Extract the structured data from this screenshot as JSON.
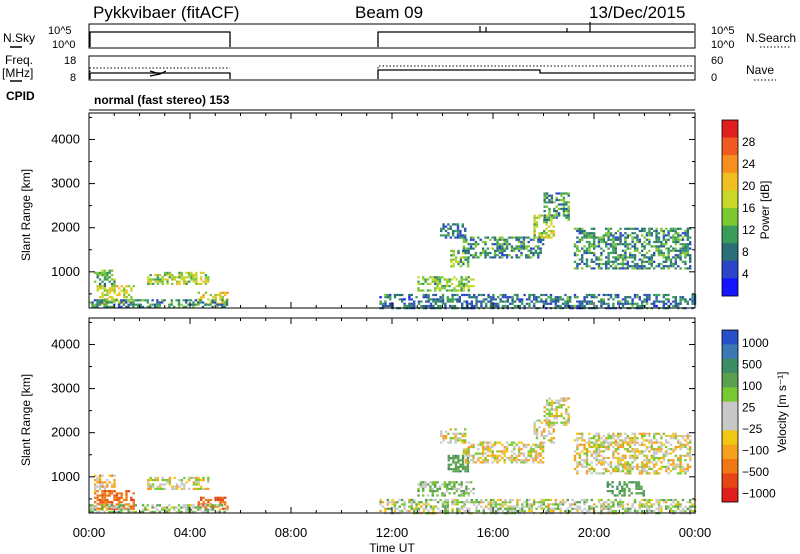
{
  "header": {
    "radar": "Pykkvibaer (fitACF)",
    "beam": "Beam 09",
    "date": "13/Dec/2015"
  },
  "top_panel": {
    "left_label": "N.Sky",
    "right_label": "N.Search",
    "left_ticks": [
      "10^5",
      "10^0"
    ],
    "right_ticks": [
      "10^5",
      "10^0"
    ]
  },
  "freq_panel": {
    "left_label_1": "Freq.",
    "left_label_2": "[MHz]",
    "right_label": "Nave",
    "left_ticks": [
      "18",
      "8"
    ],
    "right_ticks": [
      "60",
      "0"
    ]
  },
  "cpid": {
    "label": "CPID",
    "text": "normal (fast stereo) 153"
  },
  "xaxis": {
    "ticks": [
      "00:00",
      "04:00",
      "08:00",
      "12:00",
      "16:00",
      "20:00",
      "00:00"
    ],
    "label": "Time UT"
  },
  "chart_data": [
    {
      "type": "heatmap",
      "title": "Power",
      "ylabel": "Slant Range [km]",
      "xlabel": "Time UT",
      "xlim": [
        0,
        24
      ],
      "ylim": [
        180,
        4600
      ],
      "yticks": [
        "1000",
        "2000",
        "3000",
        "4000"
      ],
      "colorbar": {
        "label": "Power [dB]",
        "ticks": [
          "4",
          "8",
          "12",
          "16",
          "20",
          "24",
          "28"
        ],
        "colors": [
          "#1414ff",
          "#2a45c8",
          "#2a6e78",
          "#3a9c5a",
          "#7dc831",
          "#c8d82a",
          "#f0c020",
          "#f5901e",
          "#f05a1e",
          "#e11e1e"
        ]
      },
      "echo_regions": [
        {
          "t0": 0.2,
          "t1": 1.0,
          "r0": 700,
          "r1": 1050,
          "value": 12
        },
        {
          "t0": 0.3,
          "t1": 1.8,
          "r0": 300,
          "r1": 700,
          "value": 18
        },
        {
          "t0": 2.3,
          "t1": 4.7,
          "r0": 750,
          "r1": 1000,
          "value": 16
        },
        {
          "t0": 4.3,
          "t1": 5.5,
          "r0": 300,
          "r1": 550,
          "value": 18
        },
        {
          "t0": 0.0,
          "t1": 5.5,
          "r0": 200,
          "r1": 380,
          "value": 10
        },
        {
          "t0": 13.9,
          "t1": 14.9,
          "r0": 1800,
          "r1": 2100,
          "value": 8
        },
        {
          "t0": 14.3,
          "t1": 15.0,
          "r0": 1150,
          "r1": 1500,
          "value": 14
        },
        {
          "t0": 14.8,
          "t1": 18.0,
          "r0": 1350,
          "r1": 1800,
          "value": 10
        },
        {
          "t0": 13.0,
          "t1": 15.2,
          "r0": 600,
          "r1": 900,
          "value": 14
        },
        {
          "t0": 17.6,
          "t1": 18.4,
          "r0": 1800,
          "r1": 2300,
          "value": 16
        },
        {
          "t0": 18.0,
          "t1": 19.0,
          "r0": 2200,
          "r1": 2800,
          "value": 10
        },
        {
          "t0": 19.2,
          "t1": 23.8,
          "r0": 1100,
          "r1": 2000,
          "value": 10
        },
        {
          "t0": 11.5,
          "t1": 24.0,
          "r0": 200,
          "r1": 500,
          "value": 8
        }
      ]
    },
    {
      "type": "heatmap",
      "title": "Velocity",
      "ylabel": "Slant Range [km]",
      "xlabel": "Time UT",
      "xlim": [
        0,
        24
      ],
      "ylim": [
        180,
        4600
      ],
      "yticks": [
        "1000",
        "2000",
        "3000",
        "4000"
      ],
      "colorbar": {
        "label": "Velocity [m s⁻¹]",
        "ticks": [
          "1000",
          "500",
          "100",
          "25",
          "−25",
          "−100",
          "−500",
          "−1000"
        ],
        "colors": [
          "#2850c8",
          "#3c78b4",
          "#3c8c64",
          "#5aa050",
          "#78c832",
          "#c8c8c8",
          "#c8c8c8",
          "#f0c814",
          "#f5a01e",
          "#f07814",
          "#e64614",
          "#e11e1e"
        ]
      },
      "echo_regions": [
        {
          "t0": 0.2,
          "t1": 1.0,
          "r0": 700,
          "r1": 1050,
          "value": -50
        },
        {
          "t0": 0.2,
          "t1": 1.8,
          "r0": 300,
          "r1": 700,
          "value": -200
        },
        {
          "t0": 2.3,
          "t1": 4.7,
          "r0": 750,
          "r1": 1000,
          "value": 0
        },
        {
          "t0": 4.3,
          "t1": 5.5,
          "r0": 300,
          "r1": 550,
          "value": -200
        },
        {
          "t0": 0.0,
          "t1": 5.5,
          "r0": 200,
          "r1": 380,
          "value": 60
        },
        {
          "t0": 13.9,
          "t1": 14.9,
          "r0": 1800,
          "r1": 2100,
          "value": 0
        },
        {
          "t0": 14.2,
          "t1": 15.0,
          "r0": 1150,
          "r1": 1500,
          "value": 200
        },
        {
          "t0": 14.8,
          "t1": 18.0,
          "r0": 1350,
          "r1": 1800,
          "value": 0
        },
        {
          "t0": 13.0,
          "t1": 15.2,
          "r0": 600,
          "r1": 900,
          "value": 80
        },
        {
          "t0": 17.6,
          "t1": 18.4,
          "r0": 1800,
          "r1": 2300,
          "value": 0
        },
        {
          "t0": 18.0,
          "t1": 19.0,
          "r0": 2200,
          "r1": 2800,
          "value": 0
        },
        {
          "t0": 19.2,
          "t1": 23.8,
          "r0": 1100,
          "r1": 2000,
          "value": 0
        },
        {
          "t0": 20.5,
          "t1": 22.0,
          "r0": 600,
          "r1": 900,
          "value": 200
        },
        {
          "t0": 11.5,
          "t1": 24.0,
          "r0": 200,
          "r1": 500,
          "value": 40
        }
      ]
    }
  ]
}
